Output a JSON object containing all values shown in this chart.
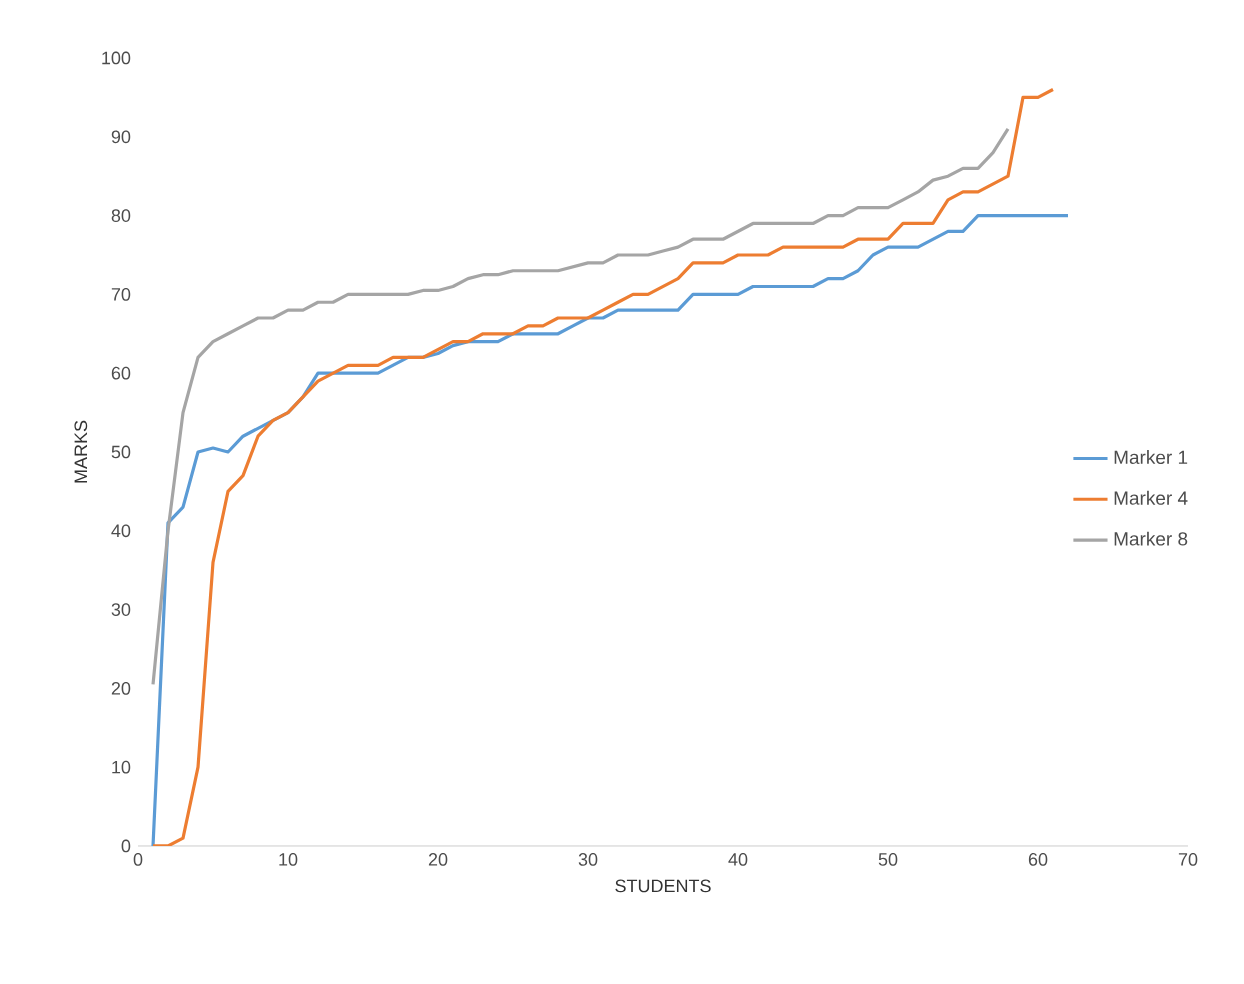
{
  "chart_data": {
    "type": "line",
    "xlabel": "STUDENTS",
    "ylabel": "MARKS",
    "xlim": [
      0,
      70
    ],
    "xticks": [
      0,
      10,
      20,
      30,
      40,
      50,
      60,
      70
    ],
    "ylim": [
      0,
      100
    ],
    "yticks": [
      0,
      10,
      20,
      30,
      40,
      50,
      60,
      70,
      80,
      90,
      100
    ],
    "grid": false,
    "legend": "right",
    "marker": "none",
    "line_style": "solid",
    "series": [
      {
        "name": "Marker 1",
        "color": "#5b9bd5",
        "x": [
          1,
          2,
          3,
          4,
          5,
          6,
          7,
          8,
          9,
          10,
          11,
          12,
          13,
          14,
          15,
          16,
          17,
          18,
          19,
          20,
          21,
          22,
          23,
          24,
          25,
          26,
          27,
          28,
          29,
          30,
          31,
          32,
          33,
          34,
          35,
          36,
          37,
          38,
          39,
          40,
          41,
          42,
          43,
          44,
          45,
          46,
          47,
          48,
          49,
          50,
          51,
          52,
          53,
          54,
          55,
          56,
          57,
          58,
          59,
          60,
          61,
          62
        ],
        "values": [
          0,
          41,
          43,
          50,
          50.5,
          50,
          52,
          53,
          54,
          55,
          57,
          60,
          60,
          60,
          60,
          60,
          61,
          62,
          62,
          62.5,
          63.5,
          64,
          64,
          64,
          65,
          65,
          65,
          65,
          66,
          67,
          67,
          68,
          68,
          68,
          68,
          68,
          70,
          70,
          70,
          70,
          71,
          71,
          71,
          71,
          71,
          72,
          72,
          73,
          75,
          76,
          76,
          76,
          77,
          78,
          78,
          80,
          80,
          80,
          80,
          80,
          80,
          80
        ]
      },
      {
        "name": "Marker 4",
        "color": "#ed7d31",
        "x": [
          1,
          2,
          3,
          4,
          5,
          6,
          7,
          8,
          9,
          10,
          11,
          12,
          13,
          14,
          15,
          16,
          17,
          18,
          19,
          20,
          21,
          22,
          23,
          24,
          25,
          26,
          27,
          28,
          29,
          30,
          31,
          32,
          33,
          34,
          35,
          36,
          37,
          38,
          39,
          40,
          41,
          42,
          43,
          44,
          45,
          46,
          47,
          48,
          49,
          50,
          51,
          52,
          53,
          54,
          55,
          56,
          57,
          58,
          59,
          60,
          61
        ],
        "values": [
          0,
          0,
          1,
          10,
          36,
          45,
          47,
          52,
          54,
          55,
          57,
          59,
          60,
          61,
          61,
          61,
          62,
          62,
          62,
          63,
          64,
          64,
          65,
          65,
          65,
          66,
          66,
          67,
          67,
          67,
          68,
          69,
          70,
          70,
          71,
          72,
          74,
          74,
          74,
          75,
          75,
          75,
          76,
          76,
          76,
          76,
          76,
          77,
          77,
          77,
          79,
          79,
          79,
          82,
          83,
          83,
          84,
          85,
          95,
          95,
          96
        ]
      },
      {
        "name": "Marker 8",
        "color": "#a5a5a5",
        "x": [
          1,
          2,
          3,
          4,
          5,
          6,
          7,
          8,
          9,
          10,
          11,
          12,
          13,
          14,
          15,
          16,
          17,
          18,
          19,
          20,
          21,
          22,
          23,
          24,
          25,
          26,
          27,
          28,
          29,
          30,
          31,
          32,
          33,
          34,
          35,
          36,
          37,
          38,
          39,
          40,
          41,
          42,
          43,
          44,
          45,
          46,
          47,
          48,
          49,
          50,
          51,
          52,
          53,
          54,
          55,
          56,
          57,
          58
        ],
        "values": [
          20.5,
          40,
          55,
          62,
          64,
          65,
          66,
          67,
          67,
          68,
          68,
          69,
          69,
          70,
          70,
          70,
          70,
          70,
          70.5,
          70.5,
          71,
          72,
          72.5,
          72.5,
          73,
          73,
          73,
          73,
          73.5,
          74,
          74,
          75,
          75,
          75,
          75.5,
          76,
          77,
          77,
          77,
          78,
          79,
          79,
          79,
          79,
          79,
          80,
          80,
          81,
          81,
          81,
          82,
          83,
          84.5,
          85,
          86,
          86,
          88,
          91
        ]
      }
    ]
  }
}
